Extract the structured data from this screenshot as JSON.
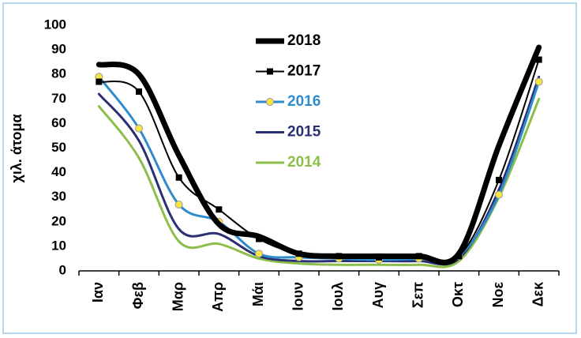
{
  "chart_data": {
    "type": "line",
    "y_label": "χιλ. άτομα",
    "categories": [
      "Ιαν",
      "Φεβ",
      "Μαρ",
      "Απρ",
      "Μάι",
      "Ιουν",
      "Ιουλ",
      "Αυγ",
      "Σεπ",
      "Οκτ",
      "Νοε",
      "Δεκ"
    ],
    "ylim": [
      0,
      100
    ],
    "yticks": [
      0,
      10,
      20,
      30,
      40,
      50,
      60,
      70,
      80,
      90,
      100
    ],
    "grid": false,
    "series": [
      {
        "name": "2018",
        "color": "#000000",
        "width": 7,
        "marker": "none",
        "values": [
          84,
          80,
          47,
          19,
          14,
          7,
          6,
          6,
          6,
          7,
          51,
          91
        ]
      },
      {
        "name": "2017",
        "color": "#000000",
        "width": 2,
        "marker": "square",
        "values": [
          77,
          73,
          38,
          25,
          13,
          7,
          6,
          5.5,
          6,
          6,
          37,
          86
        ]
      },
      {
        "name": "2016",
        "color": "#2e8bcc",
        "width": 3,
        "marker": "circle",
        "marker_color": "#f5e642",
        "values": [
          79,
          58,
          27,
          20,
          7,
          5.5,
          5,
          4.5,
          5,
          6,
          31,
          77
        ]
      },
      {
        "name": "2015",
        "color": "#2b2f73",
        "width": 3,
        "marker": "none",
        "values": [
          72,
          53,
          17,
          15,
          6,
          4,
          4,
          4,
          4,
          5,
          33,
          79
        ]
      },
      {
        "name": "2014",
        "color": "#8cbf4a",
        "width": 3,
        "marker": "none",
        "values": [
          67,
          46,
          12,
          11,
          5,
          3,
          2.5,
          2.5,
          2.5,
          4,
          30,
          70
        ]
      }
    ]
  }
}
